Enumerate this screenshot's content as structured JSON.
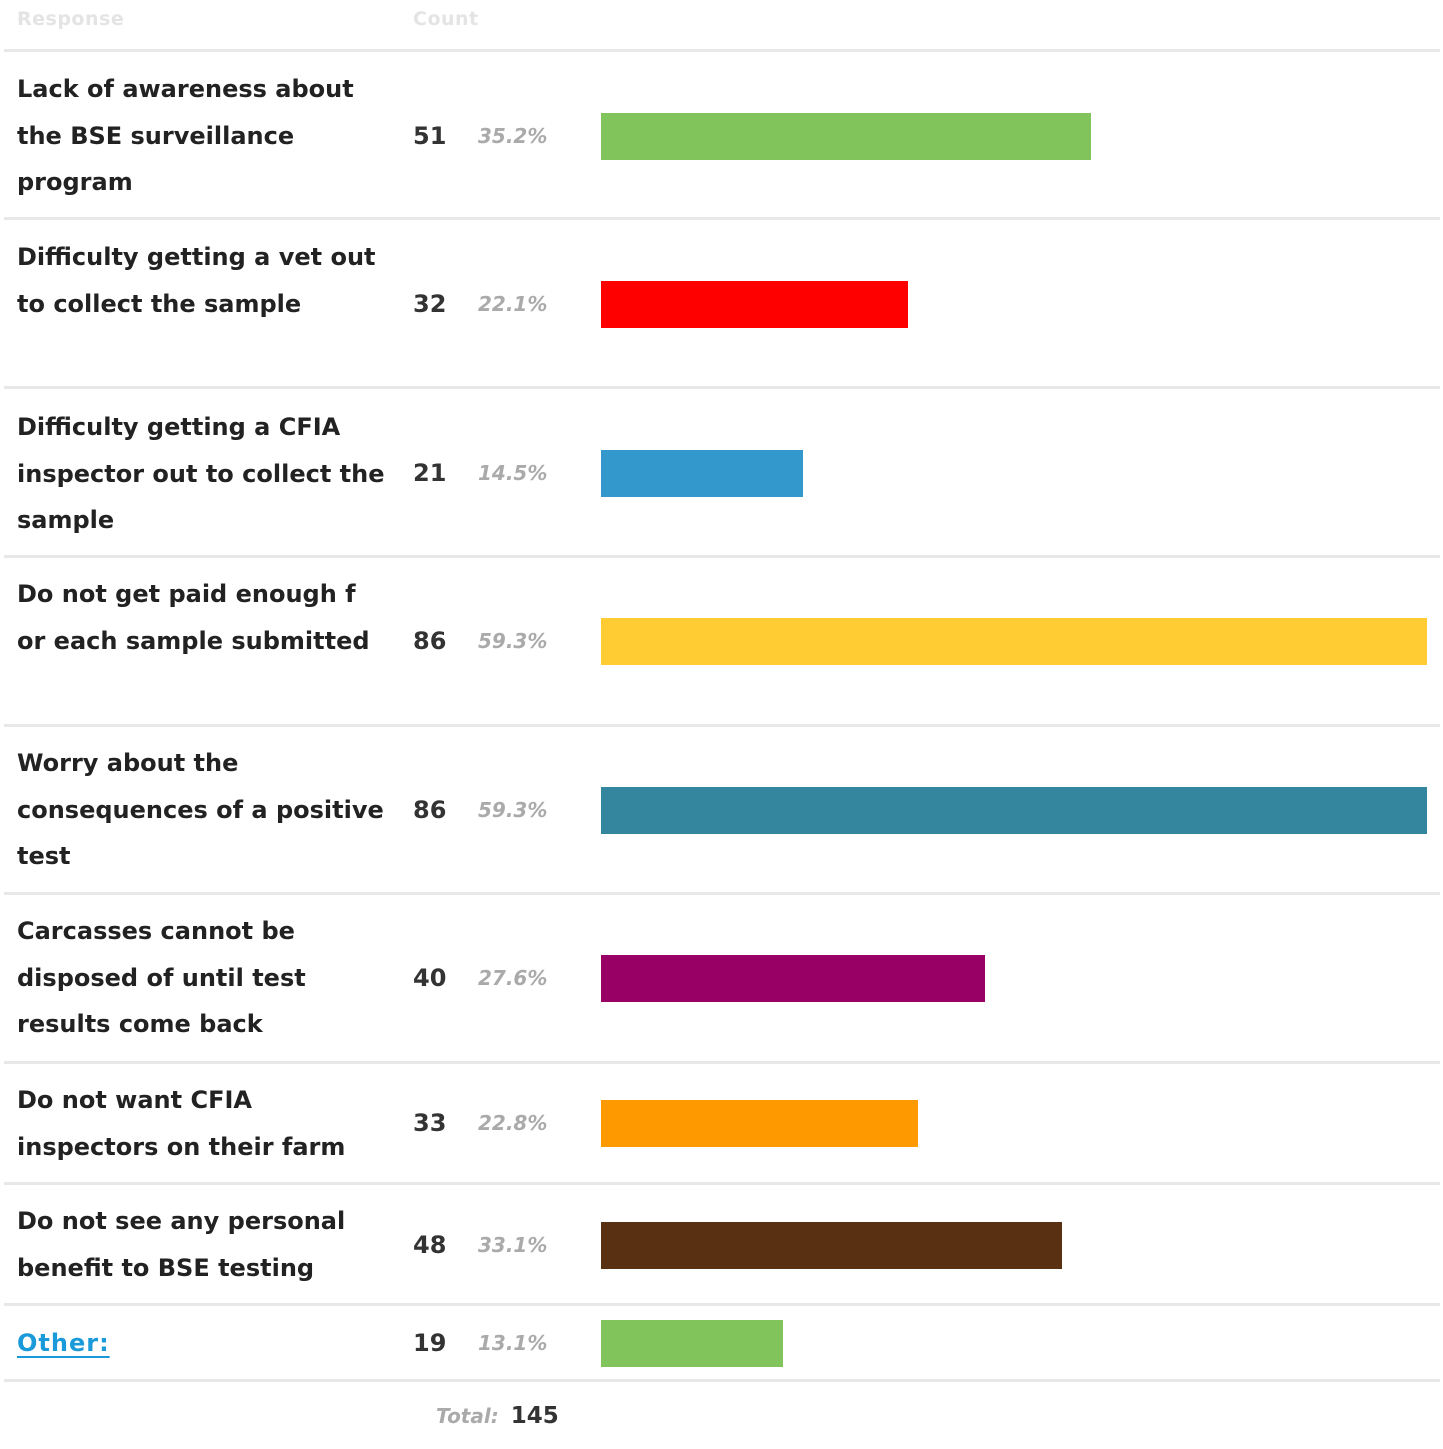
{
  "header": {
    "response_label": "Response",
    "count_label": "Count"
  },
  "chart_data": {
    "type": "bar",
    "orientation": "horizontal",
    "categories": [
      "Lack of awareness about the BSE surveillance program",
      "Difficulty getting a vet out to collect the sample",
      "Difficulty getting a CFIA inspector out to collect the sample",
      "Do not get paid enough f or each sample submitted",
      "Worry about the consequences of a positive test",
      "Carcasses cannot be disposed of until test results come back",
      "Do not want CFIA inspectors on their farm",
      "Do not see any personal benefit to BSE testing",
      "Other:"
    ],
    "values": [
      51,
      32,
      21,
      86,
      86,
      40,
      33,
      48,
      19
    ],
    "percent_labels": [
      "35.2%",
      "22.1%",
      "14.5%",
      "59.3%",
      "59.3%",
      "27.6%",
      "22.8%",
      "33.1%",
      "13.1%"
    ],
    "colors": [
      "#82c45c",
      "#ff0000",
      "#3399cc",
      "#ffcc33",
      "#33869e",
      "#990066",
      "#ff9900",
      "#5a3012",
      "#82c45c"
    ],
    "xlim": [
      0,
      86
    ],
    "grid": false,
    "legend": "none",
    "total_label": "Total:",
    "total_value": "145"
  }
}
